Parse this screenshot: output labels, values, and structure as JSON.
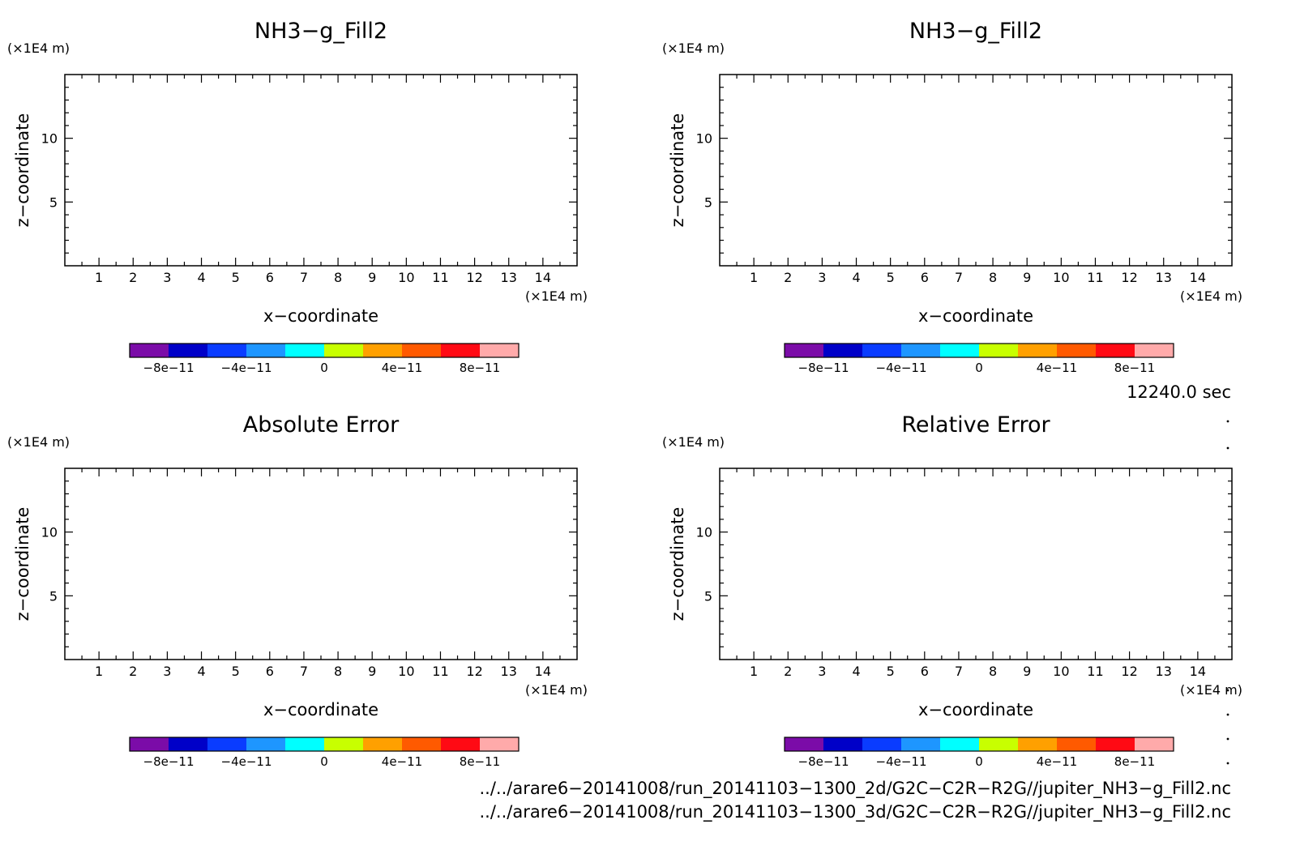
{
  "chart_data": [
    {
      "type": "heatmap",
      "title": "NH3−g_Fill2",
      "xlabel": "x−coordinate",
      "ylabel": "z−coordinate",
      "x_unit": "(×1E4 m)",
      "y_unit": "(×1E4 m)",
      "xticks": [
        "1",
        "2",
        "3",
        "4",
        "5",
        "6",
        "7",
        "8",
        "9",
        "10",
        "11",
        "12",
        "13",
        "14"
      ],
      "yticks": [
        "5",
        "10"
      ],
      "xlim": [
        0,
        15
      ],
      "ylim": [
        0,
        15
      ],
      "colorbar": {
        "colors": [
          "#7b0ca8",
          "#0000c8",
          "#0a3cff",
          "#1e96ff",
          "#00ffff",
          "#c8ff00",
          "#ffa000",
          "#ff5a00",
          "#ff0a14",
          "#ffaaaa"
        ],
        "labels": [
          "−8e−11",
          "−4e−11",
          "0",
          "4e−11",
          "8e−11"
        ]
      }
    },
    {
      "type": "heatmap",
      "title": "NH3−g_Fill2",
      "xlabel": "x−coordinate",
      "ylabel": "z−coordinate",
      "x_unit": "(×1E4 m)",
      "y_unit": "(×1E4 m)",
      "xticks": [
        "1",
        "2",
        "3",
        "4",
        "5",
        "6",
        "7",
        "8",
        "9",
        "10",
        "11",
        "12",
        "13",
        "14"
      ],
      "yticks": [
        "5",
        "10"
      ],
      "xlim": [
        0,
        15
      ],
      "ylim": [
        0,
        15
      ],
      "colorbar": {
        "colors": [
          "#7b0ca8",
          "#0000c8",
          "#0a3cff",
          "#1e96ff",
          "#00ffff",
          "#c8ff00",
          "#ffa000",
          "#ff5a00",
          "#ff0a14",
          "#ffaaaa"
        ],
        "labels": [
          "−8e−11",
          "−4e−11",
          "0",
          "4e−11",
          "8e−11"
        ]
      }
    },
    {
      "type": "heatmap",
      "title": "Absolute Error",
      "xlabel": "x−coordinate",
      "ylabel": "z−coordinate",
      "x_unit": "(×1E4 m)",
      "y_unit": "(×1E4 m)",
      "xticks": [
        "1",
        "2",
        "3",
        "4",
        "5",
        "6",
        "7",
        "8",
        "9",
        "10",
        "11",
        "12",
        "13",
        "14"
      ],
      "yticks": [
        "5",
        "10"
      ],
      "xlim": [
        0,
        15
      ],
      "ylim": [
        0,
        15
      ],
      "colorbar": {
        "colors": [
          "#7b0ca8",
          "#0000c8",
          "#0a3cff",
          "#1e96ff",
          "#00ffff",
          "#c8ff00",
          "#ffa000",
          "#ff5a00",
          "#ff0a14",
          "#ffaaaa"
        ],
        "labels": [
          "−8e−11",
          "−4e−11",
          "0",
          "4e−11",
          "8e−11"
        ]
      }
    },
    {
      "type": "heatmap",
      "title": "Relative Error",
      "xlabel": "x−coordinate",
      "ylabel": "z−coordinate",
      "x_unit": "(×1E4 m)",
      "y_unit": "(×1E4 m)",
      "xticks": [
        "1",
        "2",
        "3",
        "4",
        "5",
        "6",
        "7",
        "8",
        "9",
        "10",
        "11",
        "12",
        "13",
        "14"
      ],
      "yticks": [
        "5",
        "10"
      ],
      "xlim": [
        0,
        15
      ],
      "ylim": [
        0,
        15
      ],
      "colorbar": {
        "colors": [
          "#7b0ca8",
          "#0000c8",
          "#0a3cff",
          "#1e96ff",
          "#00ffff",
          "#c8ff00",
          "#ffa000",
          "#ff5a00",
          "#ff0a14",
          "#ffaaaa"
        ],
        "labels": [
          "−8e−11",
          "−4e−11",
          "0",
          "4e−11",
          "8e−11"
        ]
      }
    }
  ],
  "time_label": "12240.0 sec",
  "file_paths": [
    "../../arare6−20141008/run_20141103−1300_2d/G2C−C2R−R2G//jupiter_NH3−g_Fill2.nc",
    "../../arare6−20141008/run_20141103−1300_3d/G2C−C2R−R2G//jupiter_NH3−g_Fill2.nc"
  ]
}
